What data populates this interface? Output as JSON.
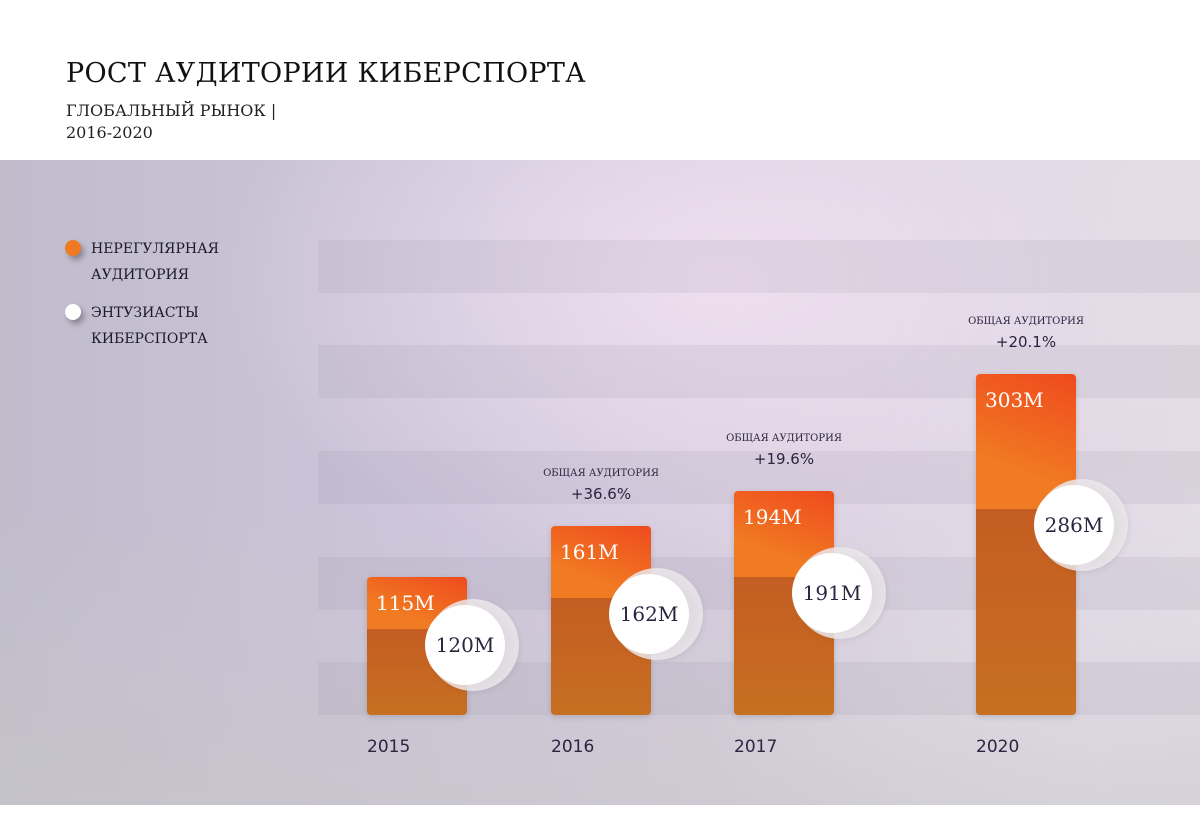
{
  "title": "РОСТ АУДИТОРИИ КИБЕРСПОРТА",
  "subtitle_line1": "ГЛОБАЛЬНЫЙ РЫНОК |",
  "subtitle_line2": "2016-2020",
  "colors": {
    "occasional": "#f07a22",
    "enthusiasts": "#ffffff",
    "bar_base": "#c4612a"
  },
  "chart_data": {
    "type": "bar",
    "stacked": true,
    "categories": [
      "2015",
      "2016",
      "2017",
      "2020"
    ],
    "legend_position": "left",
    "series": [
      {
        "name": "ЭНТУЗИАСТЫ КИБЕРСПОРТА",
        "values": [
          120,
          162,
          191,
          286
        ],
        "labels": [
          "120M",
          "162M",
          "191M",
          "286M"
        ]
      },
      {
        "name": "НЕРЕГУЛЯРНАЯ АУДИТОРИЯ",
        "values": [
          115,
          161,
          194,
          303
        ],
        "labels": [
          "115M",
          "161M",
          "194M",
          "303M"
        ]
      }
    ],
    "legend": [
      "НЕРЕГУЛЯРНАЯ АУДИТОРИЯ",
      "ЭНТУЗИАСТЫ КИБЕРСПОРТА"
    ],
    "annotations": [
      null,
      {
        "label": "ОБЩАЯ АУДИТОРИЯ",
        "value": "+36.6%"
      },
      {
        "label": "ОБЩАЯ АУДИТОРИЯ",
        "value": "+19.6%"
      },
      {
        "label": "ОБЩАЯ АУДИТОРИЯ",
        "value": "+20.1%"
      }
    ],
    "grid": "horizontal bands"
  }
}
